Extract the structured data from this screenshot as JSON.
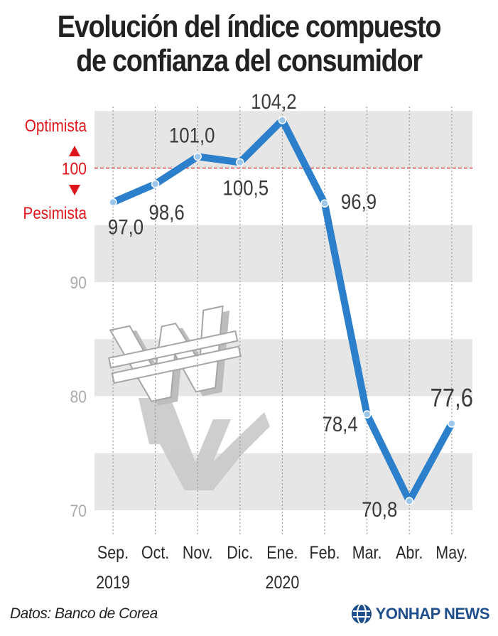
{
  "title_line1": "Evolución del índice compuesto",
  "title_line2": "de confianza del consumidor",
  "source": "Datos: Banco de Corea",
  "brand": "YONHAP NEWS",
  "colors": {
    "line": "#2c7fcb",
    "band": "#e6e6e6",
    "reference": "#e0151b",
    "label": "#3a3a3a",
    "tick": "#aaaaaa"
  },
  "icons": [
    "won-sign-icon",
    "globe-icon"
  ],
  "chart_data": {
    "type": "line",
    "categories": [
      "Sep.",
      "Oct.",
      "Nov.",
      "Dic.",
      "Ene.",
      "Feb.",
      "Mar.",
      "Abr.",
      "May."
    ],
    "years": [
      "2019",
      "",
      "",
      "",
      "2020",
      "",
      "",
      "",
      ""
    ],
    "series": [
      {
        "values": [
          97.0,
          98.6,
          101.0,
          100.5,
          104.2,
          96.9,
          78.4,
          70.8,
          77.6
        ],
        "labels": [
          "97,0",
          "98,6",
          "101,0",
          "100,5",
          "104,2",
          "96,9",
          "78,4",
          "70,8",
          "77,6"
        ]
      }
    ],
    "yticks": [
      70,
      80,
      90,
      100
    ],
    "ytick_labels": [
      "70",
      "80",
      "90",
      "100"
    ],
    "ylim": [
      70,
      107
    ],
    "reference": {
      "value": 100,
      "label": "100",
      "above": "Optimista",
      "below": "Pesimista"
    },
    "grid": "alternating horizontal bands"
  }
}
